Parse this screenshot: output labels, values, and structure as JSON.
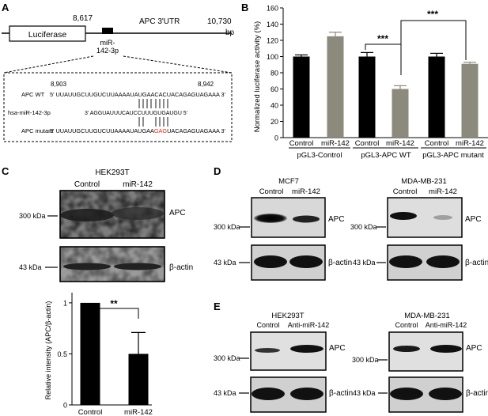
{
  "panels": {
    "A": {
      "letter": "A",
      "pos_start": "8,617",
      "utr_label": "APC 3'UTR",
      "pos_end": "10,730",
      "bp": "bp",
      "luciferase": "Luciferase",
      "mir_site_line1": "miR-",
      "mir_site_line2": "142-3p",
      "coord_left": "8,903",
      "coord_right": "8,942",
      "wt_label": "APC WT",
      "wt_seq": "5' UUAUUGCUUGUCUUAAAAUAUGAACACUACAGAGUAGAAA 3'",
      "mir_label": "hsa-miR-142-3p",
      "mir_seq": "3' AGGUAUUUCAUCCUUUGUGAUGU 5'",
      "mut_label": "APC mutant",
      "mut_seq_a": "5' UUAUUGCUUGUCUUAAAAUAUGAA",
      "mut_seq_red": "GAG",
      "mut_seq_b": "UACAGAGUAGAAA 3'",
      "mutation_color": "#d9261c"
    },
    "B": {
      "letter": "B",
      "ylabel": "Normalized luciferase activity (%)",
      "groups": [
        "pGL3-Control",
        "pGL3-APC WT",
        "pGL3-APC mutant"
      ],
      "sig_wt": "***",
      "sig_mut": "***"
    },
    "C": {
      "letter": "C",
      "cell": "HEK293T",
      "lanes": [
        "Control",
        "miR-142"
      ],
      "kda_top": "300 kDa",
      "kda_bot": "43 kDa",
      "band_top": "APC",
      "band_bot": "β-actin",
      "sig": "**"
    },
    "D": {
      "letter": "D",
      "cell_left": "MCF7",
      "cell_right": "MDA-MB-231",
      "lanes": [
        "Control",
        "miR-142"
      ],
      "kda_top": "300 kDa",
      "kda_bot": "43 kDa",
      "band_top": "APC",
      "band_bot": "β-actin"
    },
    "E": {
      "letter": "E",
      "cell_left": "HEK293T",
      "cell_right": "MDA-MB-231",
      "lanes": [
        "Control",
        "Anti-miR-142"
      ],
      "kda_top": "300 kDa",
      "kda_bot": "43 kDa",
      "band_top": "APC",
      "band_bot": "β-actin"
    }
  },
  "chart_data": [
    {
      "type": "bar",
      "panel": "B",
      "categories": [
        "Control",
        "miR-142",
        "Control",
        "miR-142",
        "Control",
        "miR-142"
      ],
      "values": [
        100,
        125,
        100,
        60,
        100,
        91
      ],
      "errors": [
        2,
        5,
        5,
        4,
        4,
        2
      ],
      "colors": [
        "#000000",
        "#8b8a7c",
        "#000000",
        "#8b8a7c",
        "#000000",
        "#8b8a7c"
      ],
      "ylabel": "Normalized luciferase activity (%)",
      "ylim": [
        0,
        160
      ],
      "yticks": [
        0,
        20,
        40,
        60,
        80,
        100,
        120,
        140,
        160
      ]
    },
    {
      "type": "bar",
      "panel": "C",
      "categories": [
        "Control",
        "miR-142"
      ],
      "values": [
        1.0,
        0.5
      ],
      "errors": [
        0,
        0.21
      ],
      "colors": [
        "#000000",
        "#000000"
      ],
      "ylabel": "Relative intensity (APC/β-actin)",
      "ylim": [
        0,
        1.1
      ],
      "yticks": [
        0,
        0.5,
        1
      ]
    }
  ]
}
